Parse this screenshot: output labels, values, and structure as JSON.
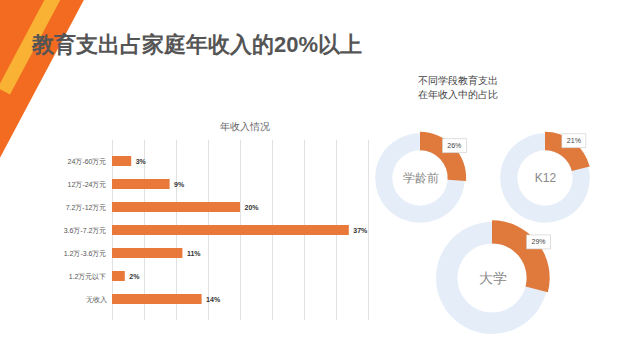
{
  "title": "教育支出占家庭年收入的20%以上",
  "chart_data": [
    {
      "type": "bar",
      "title": "年收入情况",
      "orientation": "horizontal",
      "categories": [
        "24万-60万元",
        "12万-24万元",
        "7.2万-12万元",
        "3.6万-7.2万元",
        "1.2万-3.6万元",
        "1.2万元以下",
        "无收入"
      ],
      "values": [
        3,
        9,
        20,
        37,
        11,
        2,
        14
      ],
      "value_labels": [
        "3%",
        "9%",
        "20%",
        "37%",
        "11%",
        "2%",
        "14%"
      ],
      "color": "#E8793A",
      "xlim": [
        0,
        40
      ],
      "xticks": [
        0,
        5,
        10,
        15,
        20,
        25,
        30,
        35,
        40
      ],
      "grid": true,
      "data_labels": true,
      "tick_labels": "y"
    },
    {
      "type": "pie",
      "title": "不同学段教育支出在年收入中的占比",
      "categories": [
        "学龄前",
        "K12",
        "大学"
      ],
      "values": [
        26,
        21,
        29
      ],
      "value_labels": [
        "26%",
        "21%",
        "29%"
      ],
      "color": "#E07A3C",
      "data_labels": true
    }
  ]
}
